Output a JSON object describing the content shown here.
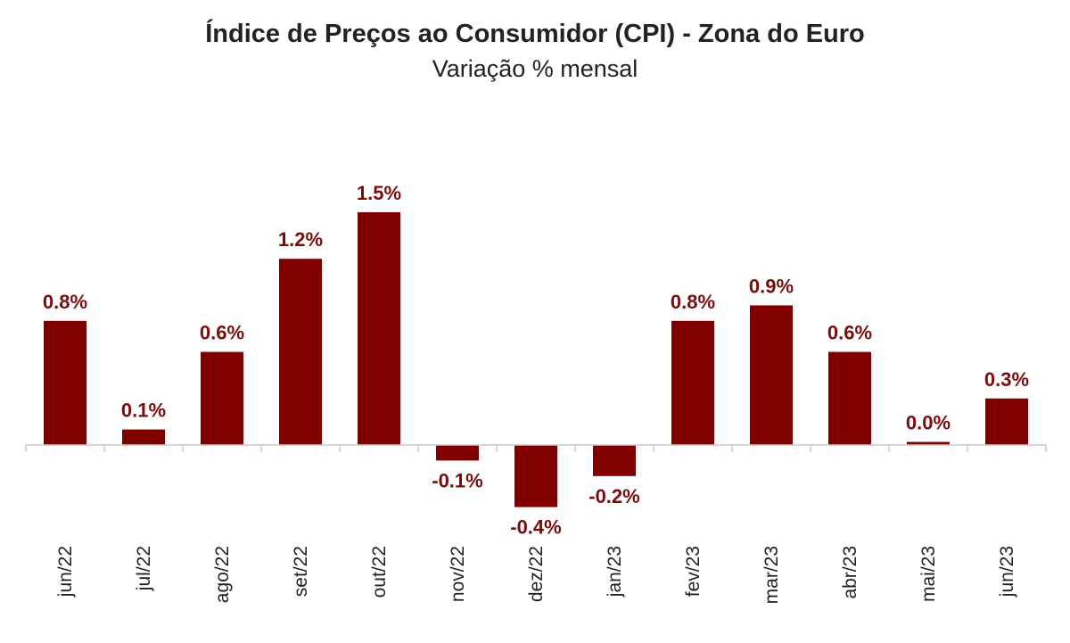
{
  "chart_data": {
    "type": "bar",
    "title": "Índice de Preços ao Consumidor (CPI) - Zona do Euro",
    "subtitle": "Variação % mensal",
    "xlabel": "",
    "ylabel": "",
    "categories": [
      "jun/22",
      "jul/22",
      "ago/22",
      "set/22",
      "out/22",
      "nov/22",
      "dez/22",
      "jan/23",
      "fev/23",
      "mar/23",
      "abr/23",
      "mai/23",
      "jun/23"
    ],
    "values": [
      0.8,
      0.1,
      0.6,
      1.2,
      1.5,
      -0.1,
      -0.4,
      -0.2,
      0.8,
      0.9,
      0.6,
      0.02,
      0.3
    ],
    "labels": [
      "0.8%",
      "0.1%",
      "0.6%",
      "1.2%",
      "1.5%",
      "-0.1%",
      "-0.4%",
      "-0.2%",
      "0.8%",
      "0.9%",
      "0.6%",
      "0.0%",
      "0.3%"
    ],
    "ylim": [
      -0.5,
      1.7
    ],
    "grid": false,
    "legend": "none",
    "bar_color": "#800000",
    "label_color": "#7a0c0c"
  }
}
